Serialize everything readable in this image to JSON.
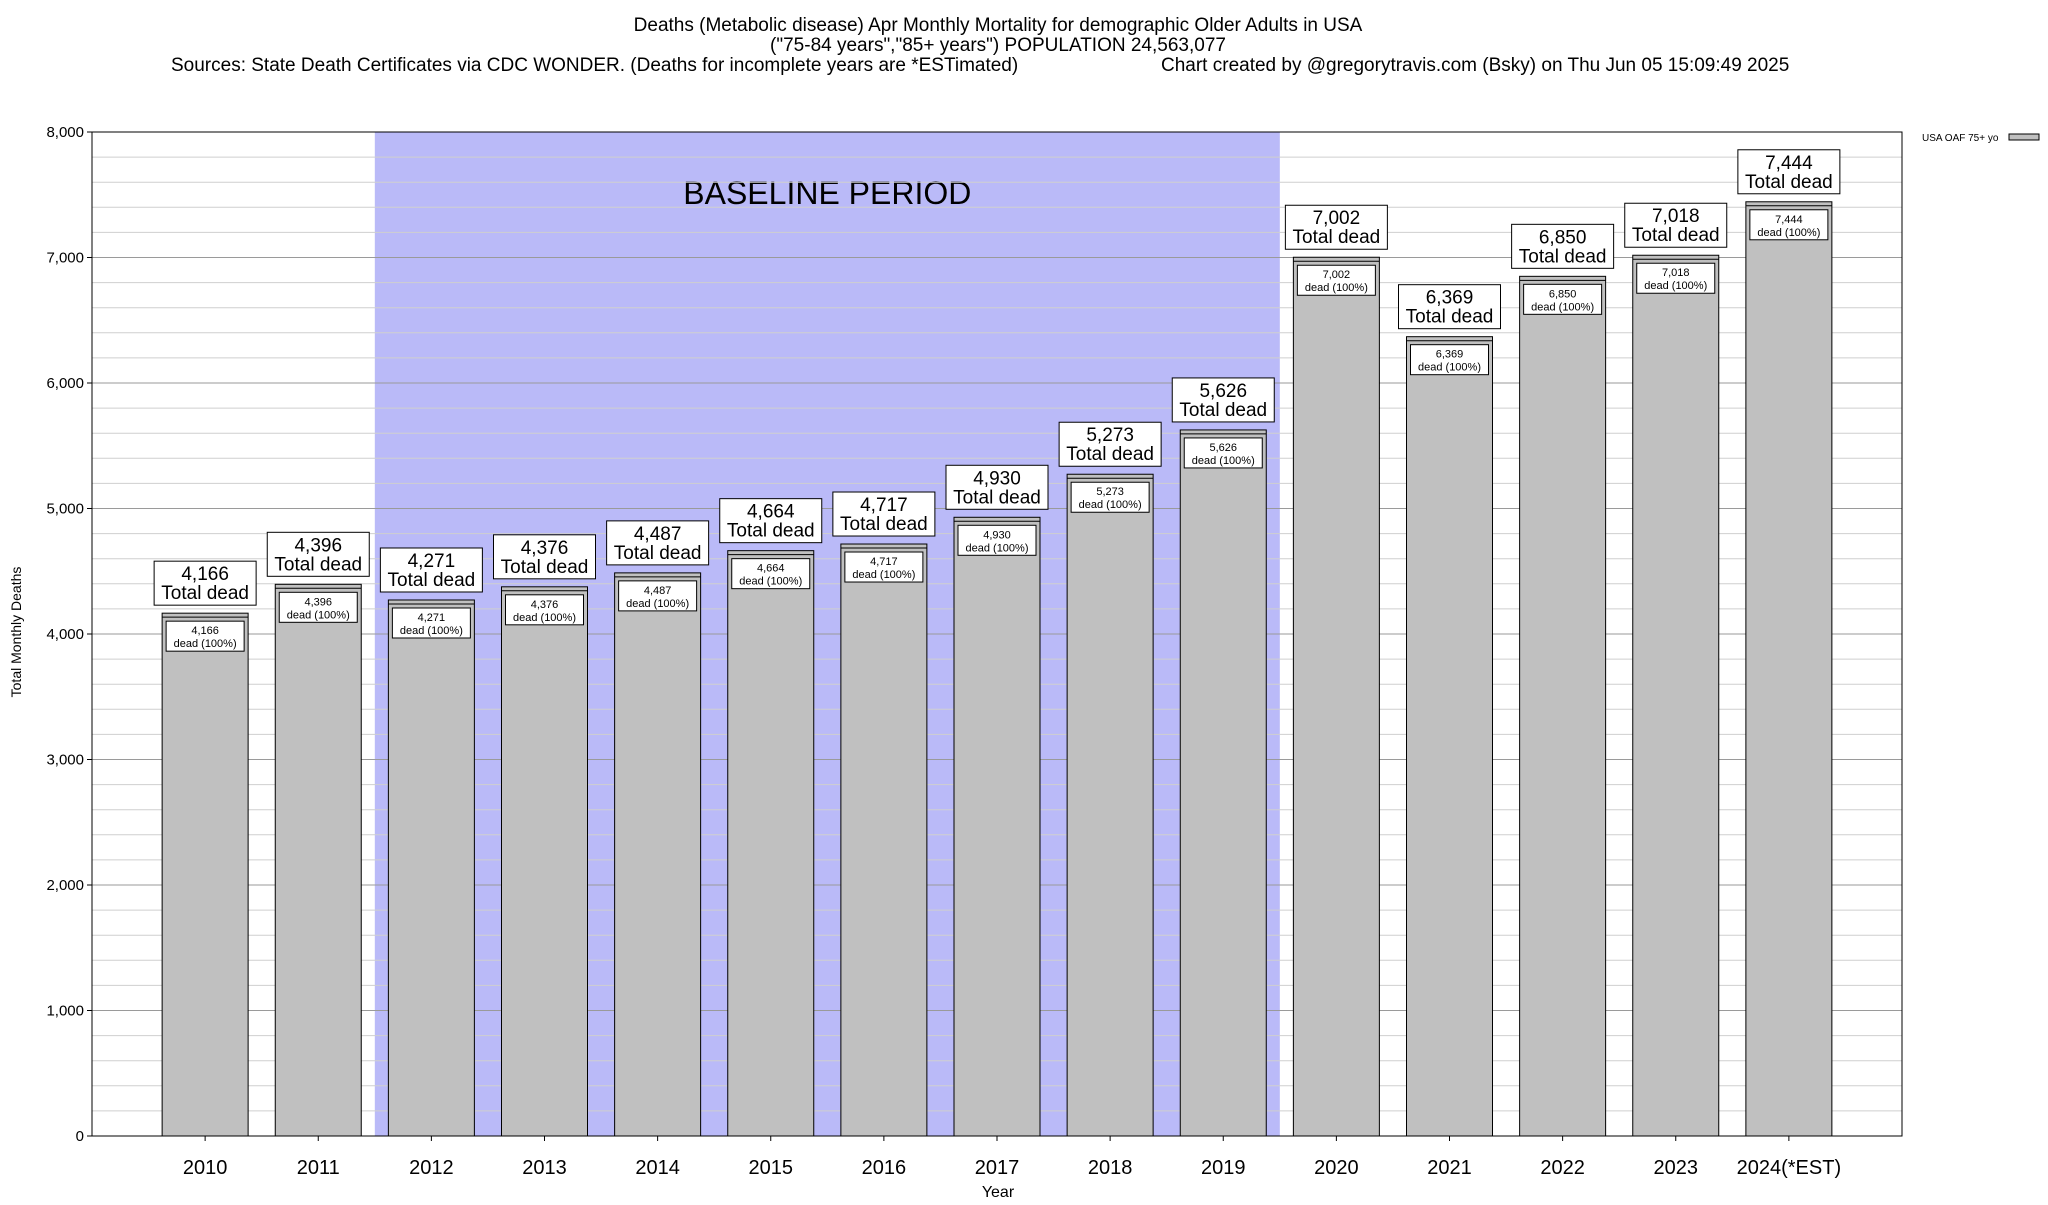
{
  "header": {
    "title_line1": "Deaths (Metabolic disease) Apr Monthly Mortality for demographic Older Adults in USA",
    "title_line2": "(\"75-84 years\",\"85+ years\") POPULATION 24,563,077",
    "sources": "Sources: State Death Certificates via CDC WONDER. (Deaths for incomplete years are *ESTimated)",
    "credit": "Chart created by @gregorytravis.com (Bsky) on Thu Jun 05 15:09:49 2025"
  },
  "chart_data": {
    "type": "bar",
    "xlabel": "Year",
    "ylabel": "Total Monthly Deaths",
    "ylim": [
      0,
      8000
    ],
    "ytick_labels": [
      "0",
      "1,000",
      "2,000",
      "3,000",
      "4,000",
      "5,000",
      "6,000",
      "7,000",
      "8,000"
    ],
    "ytick_values": [
      0,
      1000,
      2000,
      3000,
      4000,
      5000,
      6000,
      7000,
      8000
    ],
    "minor_grid_step": 200,
    "grid": true,
    "legend": {
      "label": "USA OAF 75+ yo",
      "placement": "top-right"
    },
    "baseline": {
      "label": "BASELINE PERIOD",
      "from": "2012",
      "to": "2019",
      "color": "#babaf8"
    },
    "bar_color": "#c0c0c0",
    "top_label_suffix": "Total dead",
    "inner_label_suffix": "dead (100%)",
    "categories": [
      "2010",
      "2011",
      "2012",
      "2013",
      "2014",
      "2015",
      "2016",
      "2017",
      "2018",
      "2019",
      "2020",
      "2021",
      "2022",
      "2023",
      "2024(*EST)"
    ],
    "values": [
      4166,
      4396,
      4271,
      4376,
      4487,
      4664,
      4717,
      4930,
      5273,
      5626,
      7002,
      6369,
      6850,
      7018,
      7444
    ],
    "value_labels": [
      "4,166",
      "4,396",
      "4,271",
      "4,376",
      "4,487",
      "4,664",
      "4,717",
      "4,930",
      "5,273",
      "5,626",
      "7,002",
      "6,369",
      "6,850",
      "7,018",
      "7,444"
    ]
  }
}
